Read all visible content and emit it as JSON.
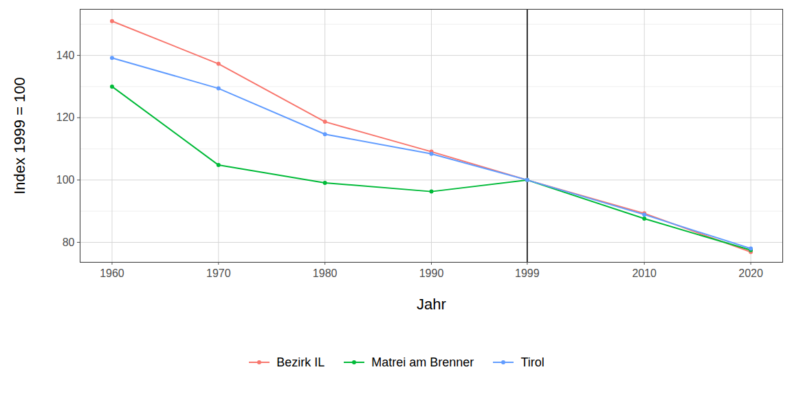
{
  "chart_data": {
    "type": "line",
    "x_label": "Jahr",
    "y_label": "Index 1999 = 100",
    "x": [
      1960,
      1970,
      1980,
      1990,
      1999,
      2010,
      2020
    ],
    "series": [
      {
        "name": "Bezirk IL",
        "color": "#F8766D",
        "values": [
          151,
          137.3,
          118.7,
          109.1,
          100,
          89.3,
          76.9
        ]
      },
      {
        "name": "Matrei am Brenner",
        "color": "#00BA38",
        "values": [
          130,
          104.8,
          99.1,
          96.3,
          100,
          87.6,
          77.5
        ]
      },
      {
        "name": "Tirol",
        "color": "#619CFF",
        "values": [
          139.2,
          129.4,
          114.7,
          108.4,
          100,
          88.9,
          78.0
        ]
      }
    ],
    "xlim": [
      1957,
      2023
    ],
    "xticks": [
      1960,
      1970,
      1980,
      1990,
      1999,
      2010,
      2020
    ],
    "ylim": [
      73.6,
      154.8
    ],
    "yticks": [
      80,
      100,
      120,
      140
    ],
    "annotations": [
      {
        "type": "vline",
        "x": 1999,
        "color": "#000000"
      }
    ],
    "grid": true,
    "legend": "bottom",
    "marker": "circle"
  }
}
